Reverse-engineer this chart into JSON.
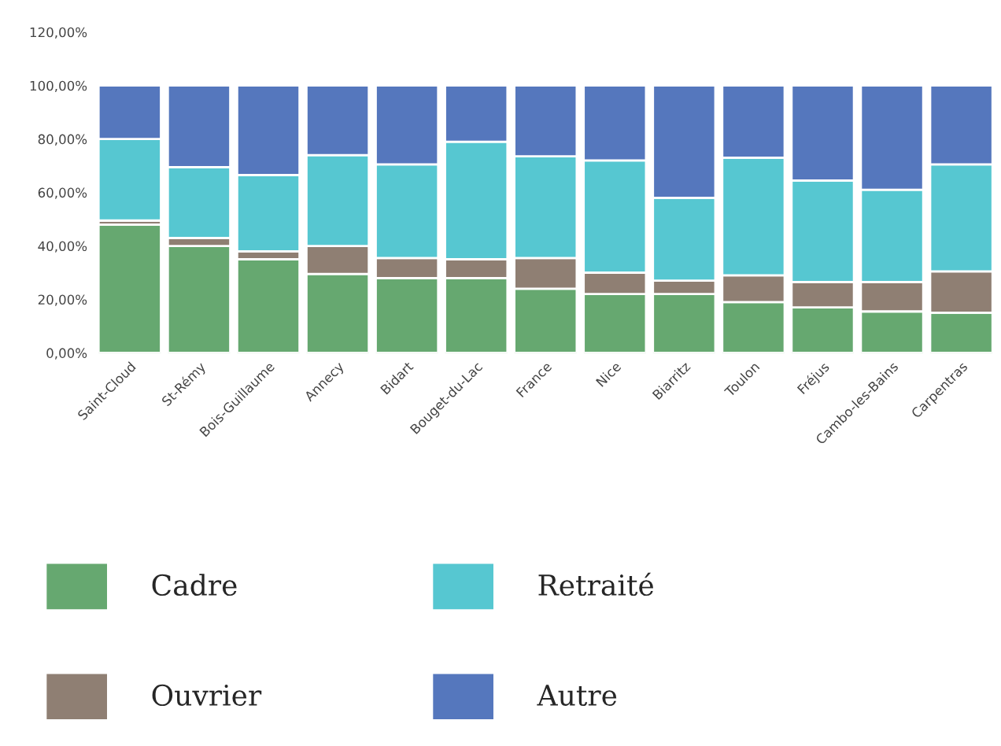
{
  "chart_data": {
    "type": "bar",
    "stacked": true,
    "categories": [
      "Saint-Cloud",
      "St-Rémy",
      "Bois-Guillaume",
      "Annecy",
      "Bidart",
      "Bouget-du-Lac",
      "France",
      "Nice",
      "Biarritz",
      "Toulon",
      "Fréjus",
      "Cambo-les-Bains",
      "Carpentras"
    ],
    "series": [
      {
        "name": "Cadre",
        "color": "#66a870",
        "values": [
          48,
          40,
          35,
          29.5,
          28,
          28,
          24,
          22,
          22,
          19,
          17,
          15.5,
          15
        ]
      },
      {
        "name": "Ouvrier",
        "color": "#8f7f73",
        "values": [
          1.5,
          3,
          3,
          10.5,
          7.5,
          7,
          11.5,
          8,
          5,
          10,
          9.5,
          11,
          15.5
        ]
      },
      {
        "name": "Retraité",
        "color": "#56c7d1",
        "values": [
          30.5,
          26.5,
          28.5,
          34,
          35,
          44,
          38,
          42,
          31,
          44,
          38,
          34.5,
          40
        ]
      },
      {
        "name": "Autre",
        "color": "#5577bd",
        "values": [
          20,
          30.5,
          33.5,
          26,
          29.5,
          21,
          26.5,
          28,
          42,
          27,
          35.5,
          39,
          29.5
        ]
      }
    ],
    "ylim": [
      0,
      120
    ],
    "yticks": [
      {
        "value": 0,
        "label": "0,00%"
      },
      {
        "value": 20,
        "label": "20,00%"
      },
      {
        "value": 40,
        "label": "40,00%"
      },
      {
        "value": 60,
        "label": "60,00%"
      },
      {
        "value": 80,
        "label": "80,00%"
      },
      {
        "value": 100,
        "label": "100,00%"
      },
      {
        "value": 120,
        "label": "120,00%"
      }
    ],
    "grid": false,
    "legend": "bottom"
  }
}
